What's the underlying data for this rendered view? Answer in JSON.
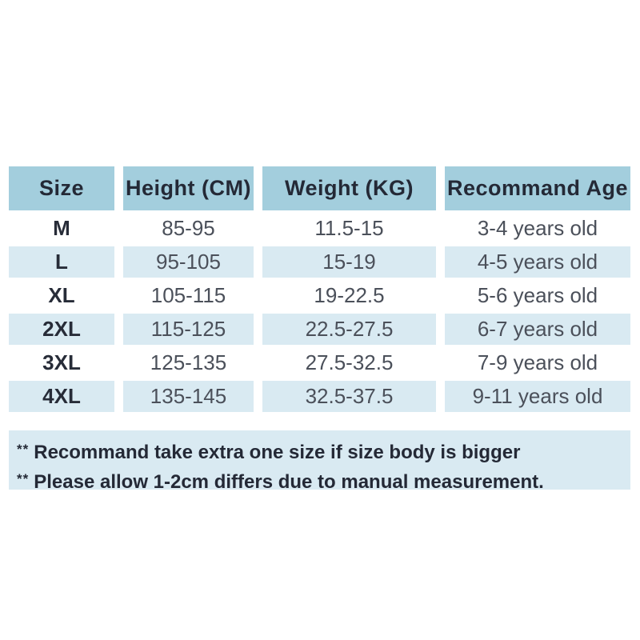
{
  "colors": {
    "header_bg": "#a3cedd",
    "stripe_bg": "#d9eaf2",
    "notes_bg": "#d9eaf2",
    "header_text": "#242936",
    "body_text": "#4b505a",
    "page_bg": "#ffffff"
  },
  "table": {
    "headers": [
      "Size",
      "Height (CM)",
      "Weight (KG)",
      "Recommand Age"
    ],
    "rows": [
      {
        "size": "M",
        "height": "85-95",
        "weight": "11.5-15",
        "age": "3-4 years old"
      },
      {
        "size": "L",
        "height": "95-105",
        "weight": "15-19",
        "age": "4-5 years old"
      },
      {
        "size": "XL",
        "height": "105-115",
        "weight": "19-22.5",
        "age": "5-6 years old"
      },
      {
        "size": "2XL",
        "height": "115-125",
        "weight": "22.5-27.5",
        "age": "6-7 years old"
      },
      {
        "size": "3XL",
        "height": "125-135",
        "weight": "27.5-32.5",
        "age": "7-9 years old"
      },
      {
        "size": "4XL",
        "height": "135-145",
        "weight": "32.5-37.5",
        "age": "9-11 years old"
      }
    ]
  },
  "notes": {
    "items": [
      {
        "prefix": "**",
        "text": "Recommand take extra one size if size body is bigger"
      },
      {
        "prefix": "**",
        "text": "Please allow 1-2cm differs due to manual measurement."
      }
    ]
  },
  "chart_data": {
    "type": "table",
    "title": "",
    "columns": [
      "Size",
      "Height (CM)",
      "Weight (KG)",
      "Recommand Age"
    ],
    "rows": [
      [
        "M",
        "85-95",
        "11.5-15",
        "3-4 years old"
      ],
      [
        "L",
        "95-105",
        "15-19",
        "4-5 years old"
      ],
      [
        "XL",
        "105-115",
        "19-22.5",
        "5-6 years old"
      ],
      [
        "2XL",
        "115-125",
        "22.5-27.5",
        "6-7 years old"
      ],
      [
        "3XL",
        "125-135",
        "27.5-32.5",
        "7-9 years old"
      ],
      [
        "4XL",
        "135-145",
        "32.5-37.5",
        "9-11 years old"
      ]
    ],
    "footnotes": [
      "** Recommand take extra one size if size body is bigger",
      "** Please allow 1-2cm differs due to manual measurement."
    ],
    "layout": {
      "header_fill": "#a3cedd",
      "row_stripe_fill": "#d9eaf2",
      "grid": "white-gaps-between-cells"
    }
  }
}
